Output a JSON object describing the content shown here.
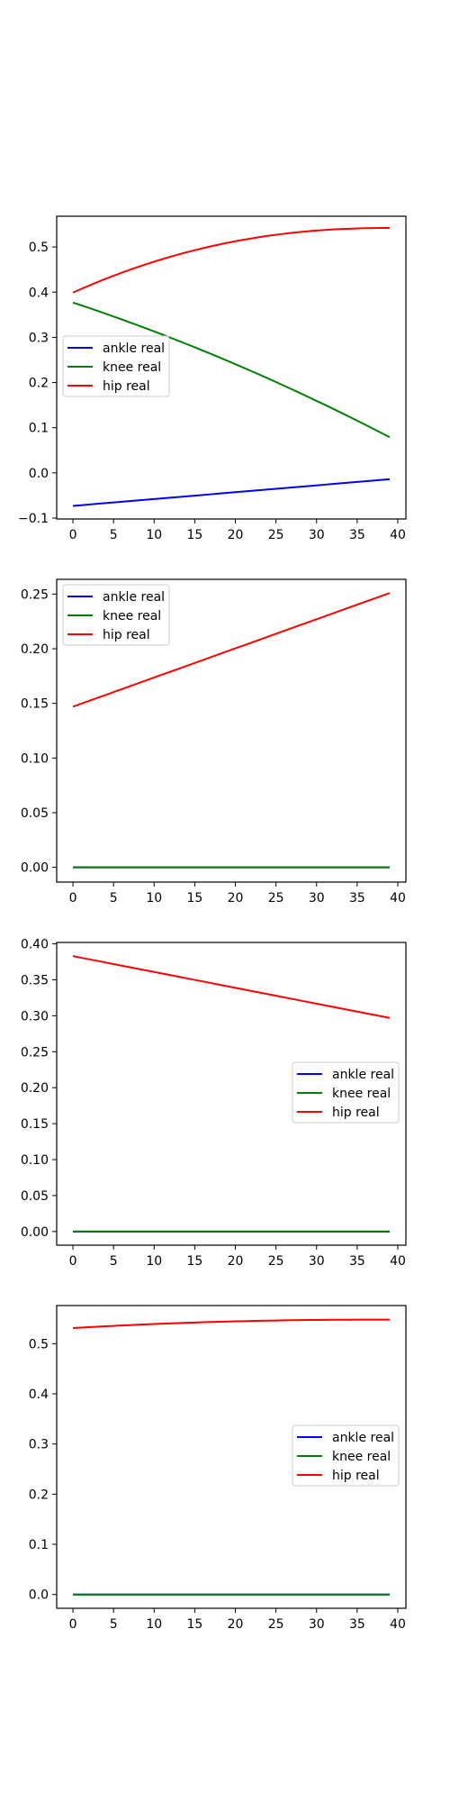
{
  "colors": {
    "ankle": "#0000ff",
    "knee": "#008000",
    "hip": "#ff0000",
    "axes": "#000000",
    "background": "#ffffff"
  },
  "chart_data": [
    {
      "type": "line",
      "x": {
        "start": 0,
        "end": 39,
        "step": 1
      },
      "xlim": [
        -2,
        41
      ],
      "ylim": [
        -0.102,
        0.568
      ],
      "xticks": [
        0,
        5,
        10,
        15,
        20,
        25,
        30,
        35,
        40
      ],
      "xtick_labels": [
        "0",
        "5",
        "10",
        "15",
        "20",
        "25",
        "30",
        "35",
        "40"
      ],
      "yticks": [
        -0.1,
        0.0,
        0.1,
        0.2,
        0.3,
        0.4,
        0.5
      ],
      "ytick_labels": [
        "−0.1",
        "0.0",
        "0.1",
        "0.2",
        "0.3",
        "0.4",
        "0.5"
      ],
      "legend_position": "center-left",
      "grid": false,
      "series": [
        {
          "name": "ankle real",
          "color": "#0000ff",
          "profile": "linear",
          "start": -0.073,
          "end": -0.014
        },
        {
          "name": "knee real",
          "color": "#008000",
          "profile": "decel-fall",
          "start": 0.377,
          "end": 0.079
        },
        {
          "name": "hip real",
          "color": "#ff0000",
          "profile": "saturating",
          "start": 0.399,
          "end": 0.542
        }
      ]
    },
    {
      "type": "line",
      "x": {
        "start": 0,
        "end": 39,
        "step": 1
      },
      "xlim": [
        -2,
        41
      ],
      "ylim": [
        -0.0135,
        0.2635
      ],
      "xticks": [
        0,
        5,
        10,
        15,
        20,
        25,
        30,
        35,
        40
      ],
      "xtick_labels": [
        "0",
        "5",
        "10",
        "15",
        "20",
        "25",
        "30",
        "35",
        "40"
      ],
      "yticks": [
        0.0,
        0.05,
        0.1,
        0.15,
        0.2,
        0.25
      ],
      "ytick_labels": [
        "0.00",
        "0.05",
        "0.10",
        "0.15",
        "0.20",
        "0.25"
      ],
      "legend_position": "upper-left",
      "grid": false,
      "series": [
        {
          "name": "ankle real",
          "color": "#0000ff",
          "profile": "linear",
          "start": 0.0,
          "end": 0.0
        },
        {
          "name": "knee real",
          "color": "#008000",
          "profile": "linear",
          "start": 0.0,
          "end": 0.0
        },
        {
          "name": "hip real",
          "color": "#ff0000",
          "profile": "linear",
          "start": 0.147,
          "end": 0.251
        }
      ]
    },
    {
      "type": "line",
      "x": {
        "start": 0,
        "end": 39,
        "step": 1
      },
      "xlim": [
        -2,
        41
      ],
      "ylim": [
        -0.019,
        0.402
      ],
      "xticks": [
        0,
        5,
        10,
        15,
        20,
        25,
        30,
        35,
        40
      ],
      "xtick_labels": [
        "0",
        "5",
        "10",
        "15",
        "20",
        "25",
        "30",
        "35",
        "40"
      ],
      "yticks": [
        0.0,
        0.05,
        0.1,
        0.15,
        0.2,
        0.25,
        0.3,
        0.35,
        0.4
      ],
      "ytick_labels": [
        "0.00",
        "0.05",
        "0.10",
        "0.15",
        "0.20",
        "0.25",
        "0.30",
        "0.35",
        "0.40"
      ],
      "legend_position": "center-right",
      "grid": false,
      "series": [
        {
          "name": "ankle real",
          "color": "#0000ff",
          "profile": "linear",
          "start": 0.0,
          "end": 0.0
        },
        {
          "name": "knee real",
          "color": "#008000",
          "profile": "linear",
          "start": 0.0,
          "end": 0.0
        },
        {
          "name": "hip real",
          "color": "#ff0000",
          "profile": "linear",
          "start": 0.383,
          "end": 0.297
        }
      ]
    },
    {
      "type": "line",
      "x": {
        "start": 0,
        "end": 39,
        "step": 1
      },
      "xlim": [
        -2,
        41
      ],
      "ylim": [
        -0.0275,
        0.576
      ],
      "xticks": [
        0,
        5,
        10,
        15,
        20,
        25,
        30,
        35,
        40
      ],
      "xtick_labels": [
        "0",
        "5",
        "10",
        "15",
        "20",
        "25",
        "30",
        "35",
        "40"
      ],
      "yticks": [
        0.0,
        0.1,
        0.2,
        0.3,
        0.4,
        0.5
      ],
      "ytick_labels": [
        "0.0",
        "0.1",
        "0.2",
        "0.3",
        "0.4",
        "0.5"
      ],
      "legend_position": "center-right",
      "grid": false,
      "series": [
        {
          "name": "ankle real",
          "color": "#0000ff",
          "profile": "linear",
          "start": 0.0,
          "end": 0.0
        },
        {
          "name": "knee real",
          "color": "#008000",
          "profile": "linear",
          "start": 0.0,
          "end": 0.0
        },
        {
          "name": "hip real",
          "color": "#ff0000",
          "profile": "saturating",
          "start": 0.531,
          "end": 0.548
        }
      ]
    }
  ]
}
